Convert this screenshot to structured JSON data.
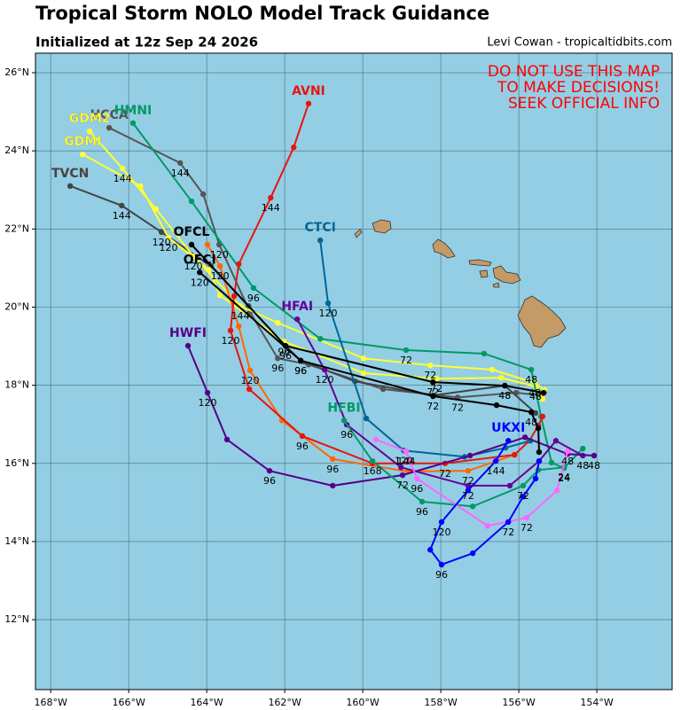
{
  "chart_data": {
    "type": "track",
    "title": "Tropical Storm NOLO Model Track Guidance",
    "subtitle": "Initialized at 12z Sep 24 2026",
    "credit": "Levi Cowan - tropicaltidbits.com",
    "warning": [
      "DO NOT USE THIS MAP",
      "TO MAKE DECISIONS!",
      "SEEK OFFICIAL INFO"
    ],
    "xlim": [
      -168.39,
      -152.07
    ],
    "ylim": [
      10.21,
      26.5
    ],
    "xticks": [
      {
        "value": -168,
        "label": "168°W"
      },
      {
        "value": -166,
        "label": "166°W"
      },
      {
        "value": -164,
        "label": "164°W"
      },
      {
        "value": -162,
        "label": "162°W"
      },
      {
        "value": -160,
        "label": "160°W"
      },
      {
        "value": -158,
        "label": "158°W"
      },
      {
        "value": -156,
        "label": "156°W"
      },
      {
        "value": -154,
        "label": "154°W"
      }
    ],
    "yticks": [
      {
        "value": 12,
        "label": "12°N"
      },
      {
        "value": 14,
        "label": "14°N"
      },
      {
        "value": 16,
        "label": "16°N"
      },
      {
        "value": 18,
        "label": "18°N"
      },
      {
        "value": 20,
        "label": "20°N"
      },
      {
        "value": 22,
        "label": "22°N"
      },
      {
        "value": 24,
        "label": "24°N"
      },
      {
        "value": 26,
        "label": "26°N"
      }
    ],
    "grid": true,
    "series": [
      {
        "name": "HCCA",
        "color": "#555555",
        "lon": [
          -166.5,
          -164.68,
          -164.09,
          -163.68,
          -162.89,
          -162.18,
          -161.39,
          -159.48,
          -157.57,
          -156.07,
          -155.43
        ],
        "lat": [
          24.59,
          23.69,
          22.89,
          21.6,
          19.87,
          18.69,
          18.53,
          17.9,
          17.69,
          17.81,
          17.74
        ],
        "labels": [
          null,
          "144",
          null,
          "120",
          null,
          "96",
          null,
          null,
          "72",
          null,
          null
        ]
      },
      {
        "name": "TVCN",
        "color": "#444444",
        "lon": [
          -167.5,
          -166.18,
          -165.16,
          -163.89,
          -162.93,
          -161.98,
          -161.59,
          -160.2,
          -158.2,
          -156.36,
          -155.57
        ],
        "lat": [
          23.1,
          22.6,
          21.92,
          21.05,
          20.03,
          19.01,
          18.63,
          18.1,
          17.74,
          17.99,
          17.29
        ],
        "labels": [
          null,
          "144",
          "120",
          null,
          null,
          null,
          "96",
          null,
          null,
          "48",
          null
        ]
      },
      {
        "name": "GDM2",
        "color": "#ffff33",
        "lon": [
          -167.0,
          -166.16,
          -165.3,
          -164.34,
          -163.14,
          -162.18,
          -159.98,
          -158.27,
          -156.68,
          -155.59,
          -155.34
        ],
        "lat": [
          24.5,
          23.55,
          22.51,
          21.3,
          20.03,
          19.6,
          18.69,
          18.51,
          18.4,
          18.06,
          17.88
        ],
        "labels": [
          null,
          "144",
          null,
          "120",
          "144",
          null,
          null,
          "72",
          null,
          "48",
          null
        ]
      },
      {
        "name": "GDMI",
        "color": "#ffff33",
        "lon": [
          -167.18,
          -165.7,
          -164.98,
          -163.95,
          -163.66,
          -162.02,
          -159.98,
          -158.11,
          -156.45,
          -155.57,
          -155.39
        ],
        "lat": [
          23.91,
          23.1,
          21.78,
          20.96,
          20.3,
          19.12,
          18.31,
          18.17,
          18.19,
          17.97,
          17.65
        ],
        "labels": [
          null,
          null,
          "120",
          null,
          null,
          "96",
          null,
          "72",
          null,
          "48",
          null
        ]
      },
      {
        "name": "HMNI",
        "color": "#009966",
        "lon": [
          -165.89,
          -164.39,
          -162.8,
          -161.09,
          -158.89,
          -156.89,
          -155.68,
          -155.43,
          -155.16,
          -154.84,
          -154.36
        ],
        "lat": [
          24.71,
          22.71,
          20.49,
          19.19,
          18.9,
          18.81,
          18.4,
          17.2,
          16.02,
          15.88,
          16.38
        ],
        "labels": [
          null,
          null,
          "96",
          null,
          "72",
          null,
          "48",
          null,
          null,
          "24",
          null
        ]
      },
      {
        "color": "#ff6600",
        "lon": [
          -163.98,
          -163.66,
          -163.18,
          -162.89,
          -162.07,
          -160.77,
          -158.84,
          -157.3,
          -156.11
        ],
        "lat": [
          21.6,
          21.05,
          19.51,
          18.38,
          17.1,
          16.11,
          15.79,
          15.81,
          16.22
        ],
        "labels": [
          null,
          "120",
          null,
          "120",
          null,
          "96",
          null,
          "72",
          null
        ]
      },
      {
        "name": "AVNI",
        "color": "#e8150f",
        "lon": [
          -161.39,
          -161.77,
          -162.36,
          -163.18,
          -163.3,
          -163.39,
          -162.91,
          -161.55,
          -159.75,
          -157.89,
          -156.11,
          -155.73,
          -155.5,
          -155.39
        ],
        "lat": [
          25.21,
          24.09,
          22.8,
          21.1,
          20.28,
          19.4,
          17.9,
          16.7,
          16.0,
          16.0,
          16.22,
          16.58,
          16.97,
          17.2
        ],
        "labels": [
          null,
          null,
          "144",
          null,
          null,
          "120",
          null,
          "96",
          null,
          "72",
          null,
          null,
          null,
          null
        ]
      },
      {
        "name": "CTCI",
        "color": "#006699",
        "lon": [
          -161.09,
          -160.89,
          -159.91,
          -158.95,
          -157.39,
          -156.34,
          -155.7
        ],
        "lat": [
          21.71,
          20.1,
          17.15,
          16.33,
          16.17,
          16.4,
          16.58
        ],
        "labels": [
          null,
          "120",
          null,
          "120",
          null,
          null,
          null
        ]
      },
      {
        "name": "HFAI",
        "color": "#660099",
        "lon": [
          -161.68,
          -160.98,
          -160.41,
          -159.02,
          -157.3,
          -156.23,
          -155.48,
          -155.05,
          -154.36
        ],
        "lat": [
          19.69,
          18.4,
          16.99,
          15.9,
          15.43,
          15.43,
          16.06,
          16.58,
          16.2
        ],
        "labels": [
          null,
          "120",
          "96",
          null,
          "72",
          null,
          null,
          null,
          "48"
        ]
      },
      {
        "name": "HWFI",
        "color": "#550088",
        "lon": [
          -164.48,
          -163.98,
          -163.48,
          -162.39,
          -160.77,
          -158.98,
          -157.25,
          -155.84,
          -154.75,
          -154.07
        ],
        "lat": [
          19.01,
          17.81,
          16.61,
          15.81,
          15.43,
          15.7,
          16.2,
          16.67,
          16.24,
          16.2
        ],
        "labels": [
          null,
          "120",
          null,
          "96",
          null,
          "72",
          null,
          null,
          null,
          "48"
        ]
      },
      {
        "name": "HFBI",
        "color": "#009966",
        "lon": [
          -160.48,
          -159.75,
          -158.48,
          -157.18,
          -155.89,
          -155.5,
          -154.84
        ],
        "lat": [
          17.1,
          16.06,
          15.02,
          14.9,
          15.43,
          15.83,
          15.9
        ],
        "labels": [
          null,
          "168",
          "96",
          null,
          "72",
          null,
          "24"
        ]
      },
      {
        "color": "#ff66ff",
        "lon": [
          -159.66,
          -158.89,
          -158.61,
          -156.8,
          -155.8,
          -155.02,
          -154.75
        ],
        "lat": [
          16.61,
          16.31,
          15.61,
          14.4,
          14.61,
          15.31,
          16.31
        ],
        "labels": [
          null,
          "144",
          "96",
          null,
          "72",
          null,
          "48"
        ]
      },
      {
        "name": "UKXI",
        "color": "#0000ff",
        "lon": [
          -156.27,
          -156.59,
          -157.3,
          -157.98,
          -158.27,
          -157.98,
          -157.18,
          -156.27,
          -155.89,
          -155.57,
          -155.48
        ],
        "lat": [
          16.58,
          16.06,
          15.31,
          14.5,
          13.79,
          13.41,
          13.7,
          14.5,
          15.15,
          15.61,
          16.06
        ],
        "labels": [
          null,
          "144",
          null,
          "120",
          null,
          "96",
          null,
          "72",
          null,
          null,
          null
        ]
      },
      {
        "name": "OFCL",
        "color": "#000000",
        "lon": [
          -164.39,
          -161.98,
          -158.2,
          -156.36,
          -155.36
        ],
        "lat": [
          21.6,
          19.01,
          18.08,
          17.99,
          17.81
        ],
        "labels": [
          null,
          "96",
          "72",
          "48",
          null
        ]
      },
      {
        "name": "OFCI",
        "color": "#000000",
        "lon": [
          -164.18,
          -161.59,
          -158.2,
          -156.57,
          -155.68,
          -155.5,
          -155.48
        ],
        "lat": [
          20.89,
          18.63,
          17.72,
          17.49,
          17.31,
          16.9,
          16.29
        ],
        "labels": [
          "120",
          "96",
          "72",
          null,
          "48",
          null,
          null
        ]
      }
    ]
  }
}
